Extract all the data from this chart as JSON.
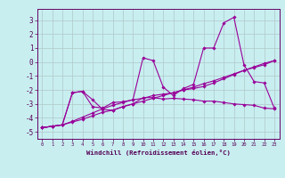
{
  "xlabel": "Windchill (Refroidissement éolien,°C)",
  "xlim": [
    -0.5,
    23.5
  ],
  "ylim": [
    -5.5,
    3.8
  ],
  "yticks": [
    -5,
    -4,
    -3,
    -2,
    -1,
    0,
    1,
    2,
    3
  ],
  "xticks": [
    0,
    1,
    2,
    3,
    4,
    5,
    6,
    7,
    8,
    9,
    10,
    11,
    12,
    13,
    14,
    15,
    16,
    17,
    18,
    19,
    20,
    21,
    22,
    23
  ],
  "bg_color": "#c8eef0",
  "line_color": "#990099",
  "grid_color": "#b0c8c8",
  "series": {
    "xs": [
      0,
      1,
      2,
      3,
      4,
      5,
      6,
      7,
      8,
      9,
      10,
      11,
      12,
      13,
      14,
      15,
      16,
      17,
      18,
      19,
      20,
      21,
      22,
      23
    ],
    "line1": [
      -4.7,
      -4.6,
      -4.5,
      -2.2,
      -2.1,
      -3.2,
      -3.3,
      -2.9,
      -2.85,
      -2.7,
      0.3,
      0.1,
      -1.8,
      -2.4,
      -1.9,
      -1.6,
      1.0,
      1.0,
      2.8,
      3.2,
      -0.2,
      -1.4,
      -1.5,
      -3.3
    ],
    "line2": [
      -4.7,
      -4.6,
      -4.5,
      -2.2,
      -2.1,
      -2.7,
      -3.4,
      -3.45,
      -3.2,
      -3.0,
      -2.55,
      -2.55,
      -2.65,
      -2.6,
      -2.65,
      -2.7,
      -2.8,
      -2.8,
      -2.9,
      -3.0,
      -3.05,
      -3.1,
      -3.3,
      -3.35
    ],
    "line3": [
      -4.7,
      -4.6,
      -4.5,
      -4.3,
      -4.1,
      -3.85,
      -3.6,
      -3.45,
      -3.2,
      -3.0,
      -2.8,
      -2.6,
      -2.4,
      -2.2,
      -2.0,
      -1.8,
      -1.55,
      -1.35,
      -1.1,
      -0.85,
      -0.6,
      -0.35,
      -0.1,
      0.1
    ],
    "line4": [
      -4.7,
      -4.6,
      -4.5,
      -4.25,
      -3.95,
      -3.65,
      -3.35,
      -3.1,
      -2.9,
      -2.7,
      -2.6,
      -2.4,
      -2.3,
      -2.2,
      -2.0,
      -1.9,
      -1.75,
      -1.5,
      -1.2,
      -0.9,
      -0.6,
      -0.4,
      -0.2,
      0.1
    ]
  }
}
